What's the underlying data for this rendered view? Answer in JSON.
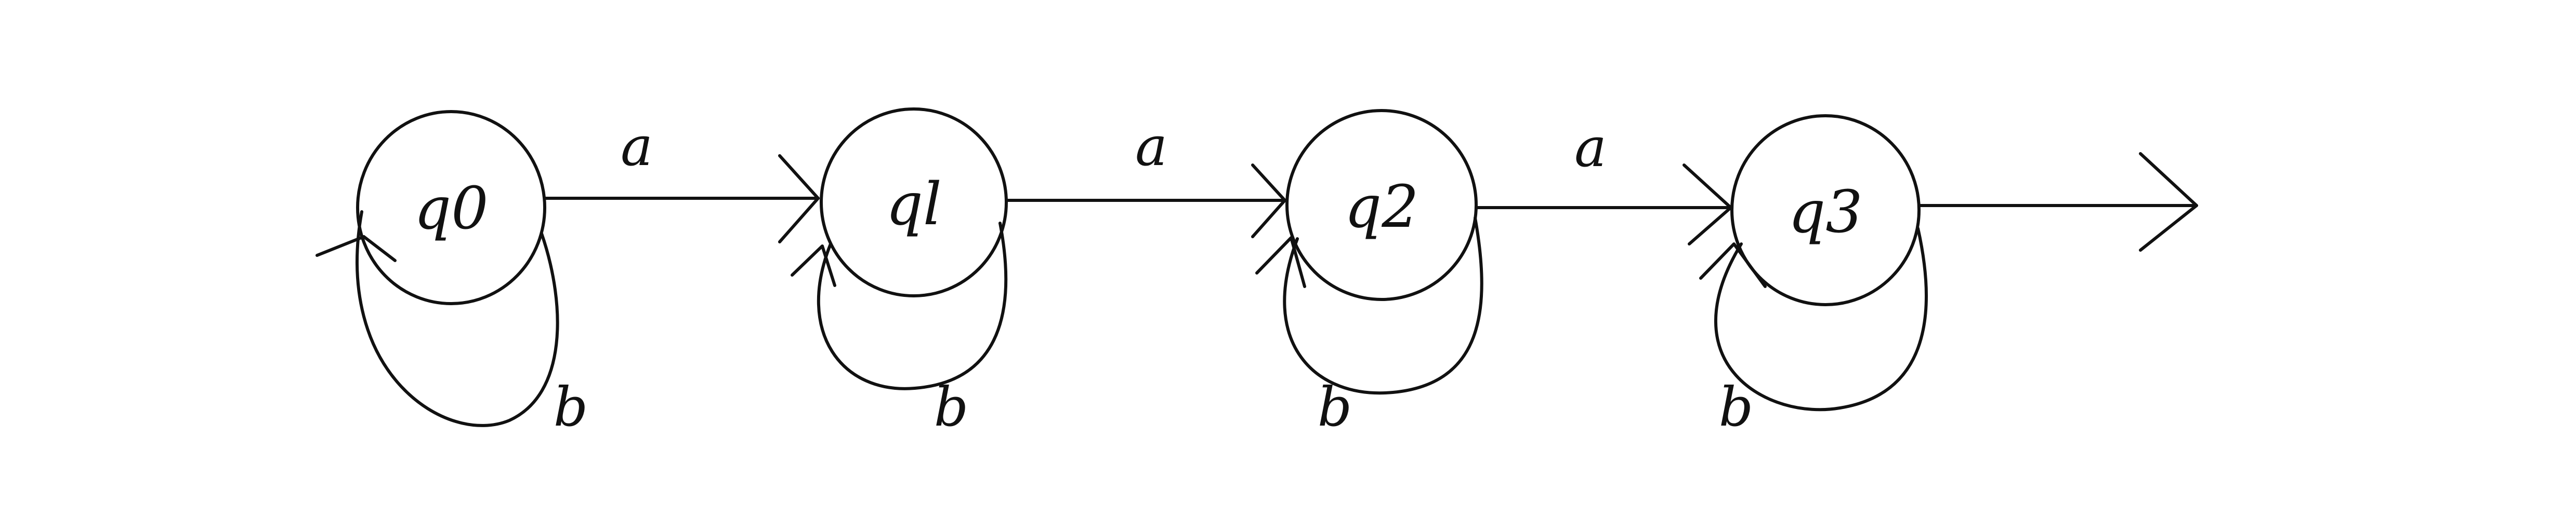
{
  "diagram": {
    "type": "finite-automaton",
    "states": [
      {
        "id": "q0",
        "label": "q0"
      },
      {
        "id": "q1",
        "label": "ql"
      },
      {
        "id": "q2",
        "label": "q2"
      },
      {
        "id": "q3",
        "label": "q3"
      }
    ],
    "transitions": [
      {
        "from": "q0",
        "to": "q1",
        "label": "a"
      },
      {
        "from": "q1",
        "to": "q2",
        "label": "a"
      },
      {
        "from": "q2",
        "to": "q3",
        "label": "a"
      },
      {
        "from": "q0",
        "to": "q0",
        "label": "b"
      },
      {
        "from": "q1",
        "to": "q1",
        "label": "b"
      },
      {
        "from": "q2",
        "to": "q2",
        "label": "b"
      },
      {
        "from": "q3",
        "to": "q3",
        "label": "b"
      }
    ],
    "start_state": "q0",
    "outgoing_arrow_from": "q3",
    "ink_color": "#111111",
    "background_color": "#ffffff"
  }
}
